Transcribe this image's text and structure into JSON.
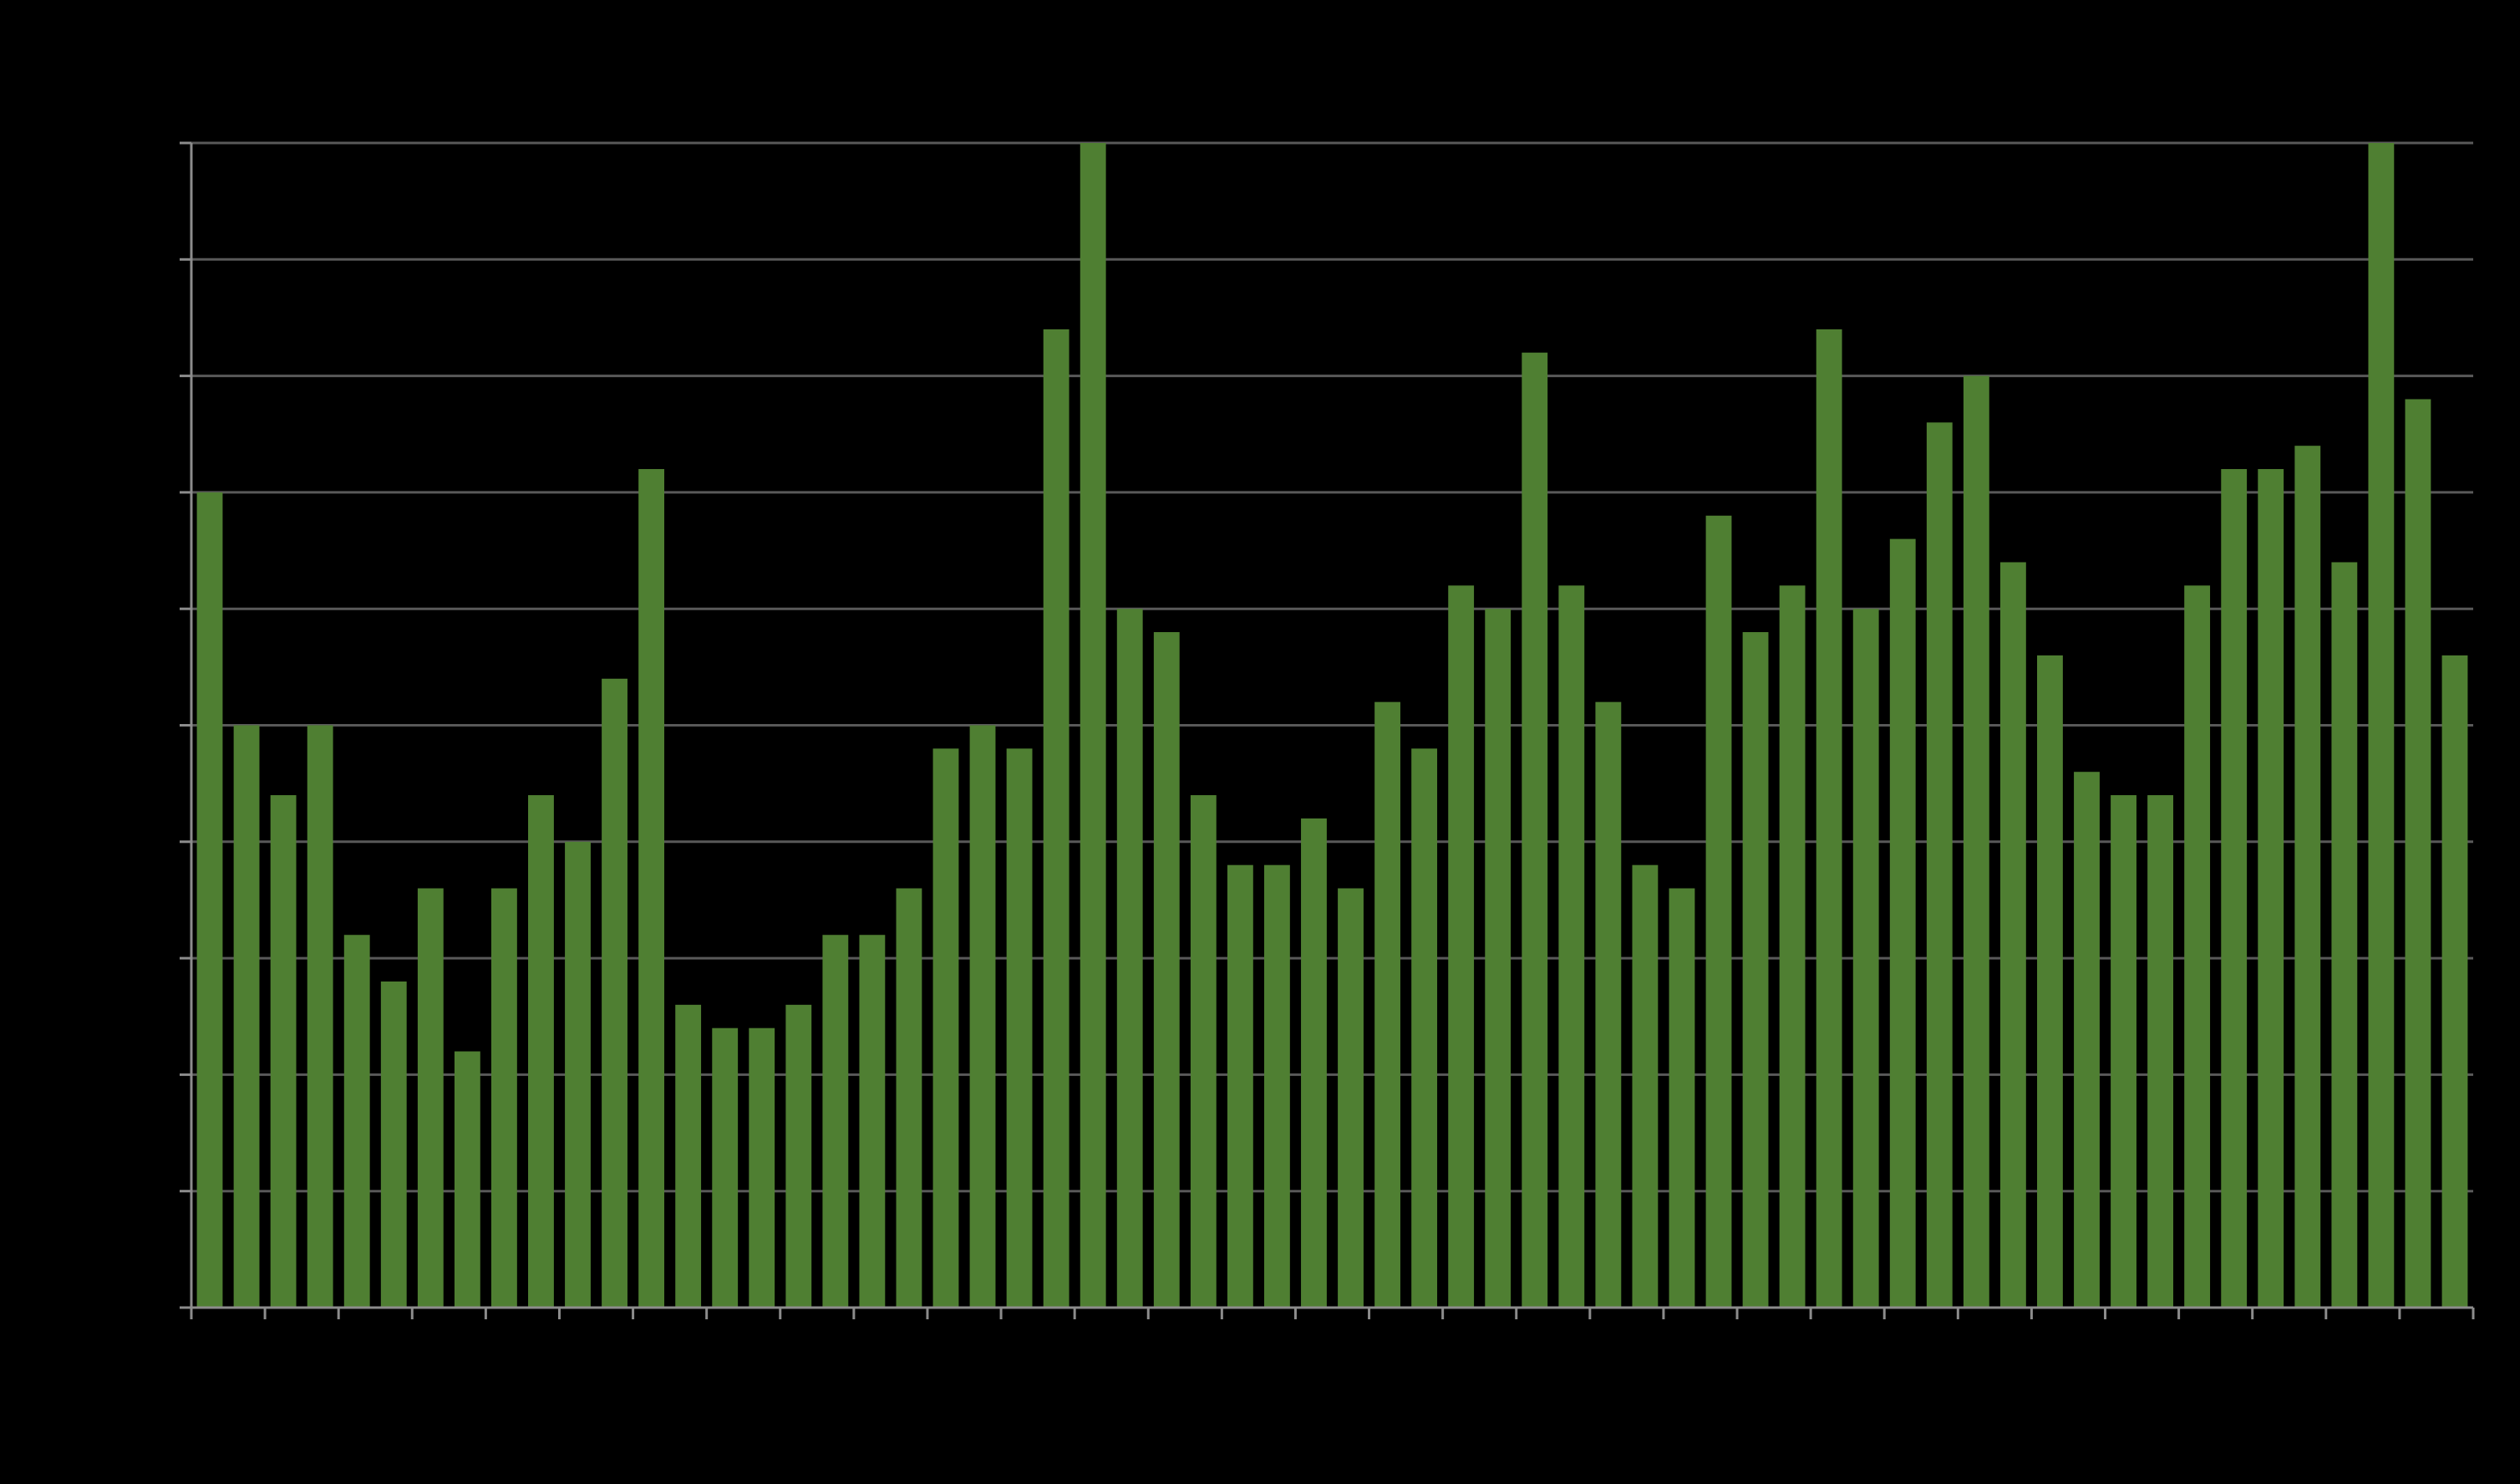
{
  "chart_data": {
    "type": "bar",
    "categories": [
      null,
      null,
      null,
      null,
      null,
      null,
      null,
      null,
      null,
      null,
      null,
      null,
      null,
      null,
      null,
      null,
      null,
      null,
      null,
      null,
      null,
      null,
      null,
      null,
      null,
      null,
      null,
      null,
      null,
      null,
      null,
      null,
      null,
      null,
      null,
      null,
      null,
      null,
      null,
      null,
      null,
      null,
      null,
      null,
      null,
      null,
      null,
      null,
      null,
      null,
      null,
      null,
      null,
      null,
      null,
      null,
      null,
      null,
      null,
      null,
      null,
      null
    ],
    "values": [
      7.0,
      5.0,
      4.4,
      5.0,
      3.2,
      2.8,
      3.6,
      2.2,
      3.6,
      4.4,
      4.0,
      5.4,
      7.2,
      2.6,
      2.4,
      2.4,
      2.6,
      3.2,
      3.2,
      3.6,
      4.8,
      5.0,
      4.8,
      8.4,
      10,
      6.0,
      5.8,
      4.4,
      3.8,
      3.8,
      4.2,
      3.6,
      5.2,
      4.8,
      6.2,
      6.0,
      8.2,
      6.2,
      5.2,
      3.8,
      3.6,
      6.8,
      5.8,
      6.2,
      8.4,
      6.0,
      6.6,
      7.6,
      8.0,
      6.4,
      5.6,
      4.6,
      4.4,
      4.4,
      6.2,
      7.2,
      7.2,
      7.4,
      6.4,
      10,
      7.8,
      5.6
    ],
    "color": "#4f7f32",
    "ylim": [
      0,
      10
    ],
    "yticks": [
      0,
      1,
      2,
      3,
      4,
      5,
      6,
      7,
      8,
      9,
      10
    ],
    "grid": true
  }
}
